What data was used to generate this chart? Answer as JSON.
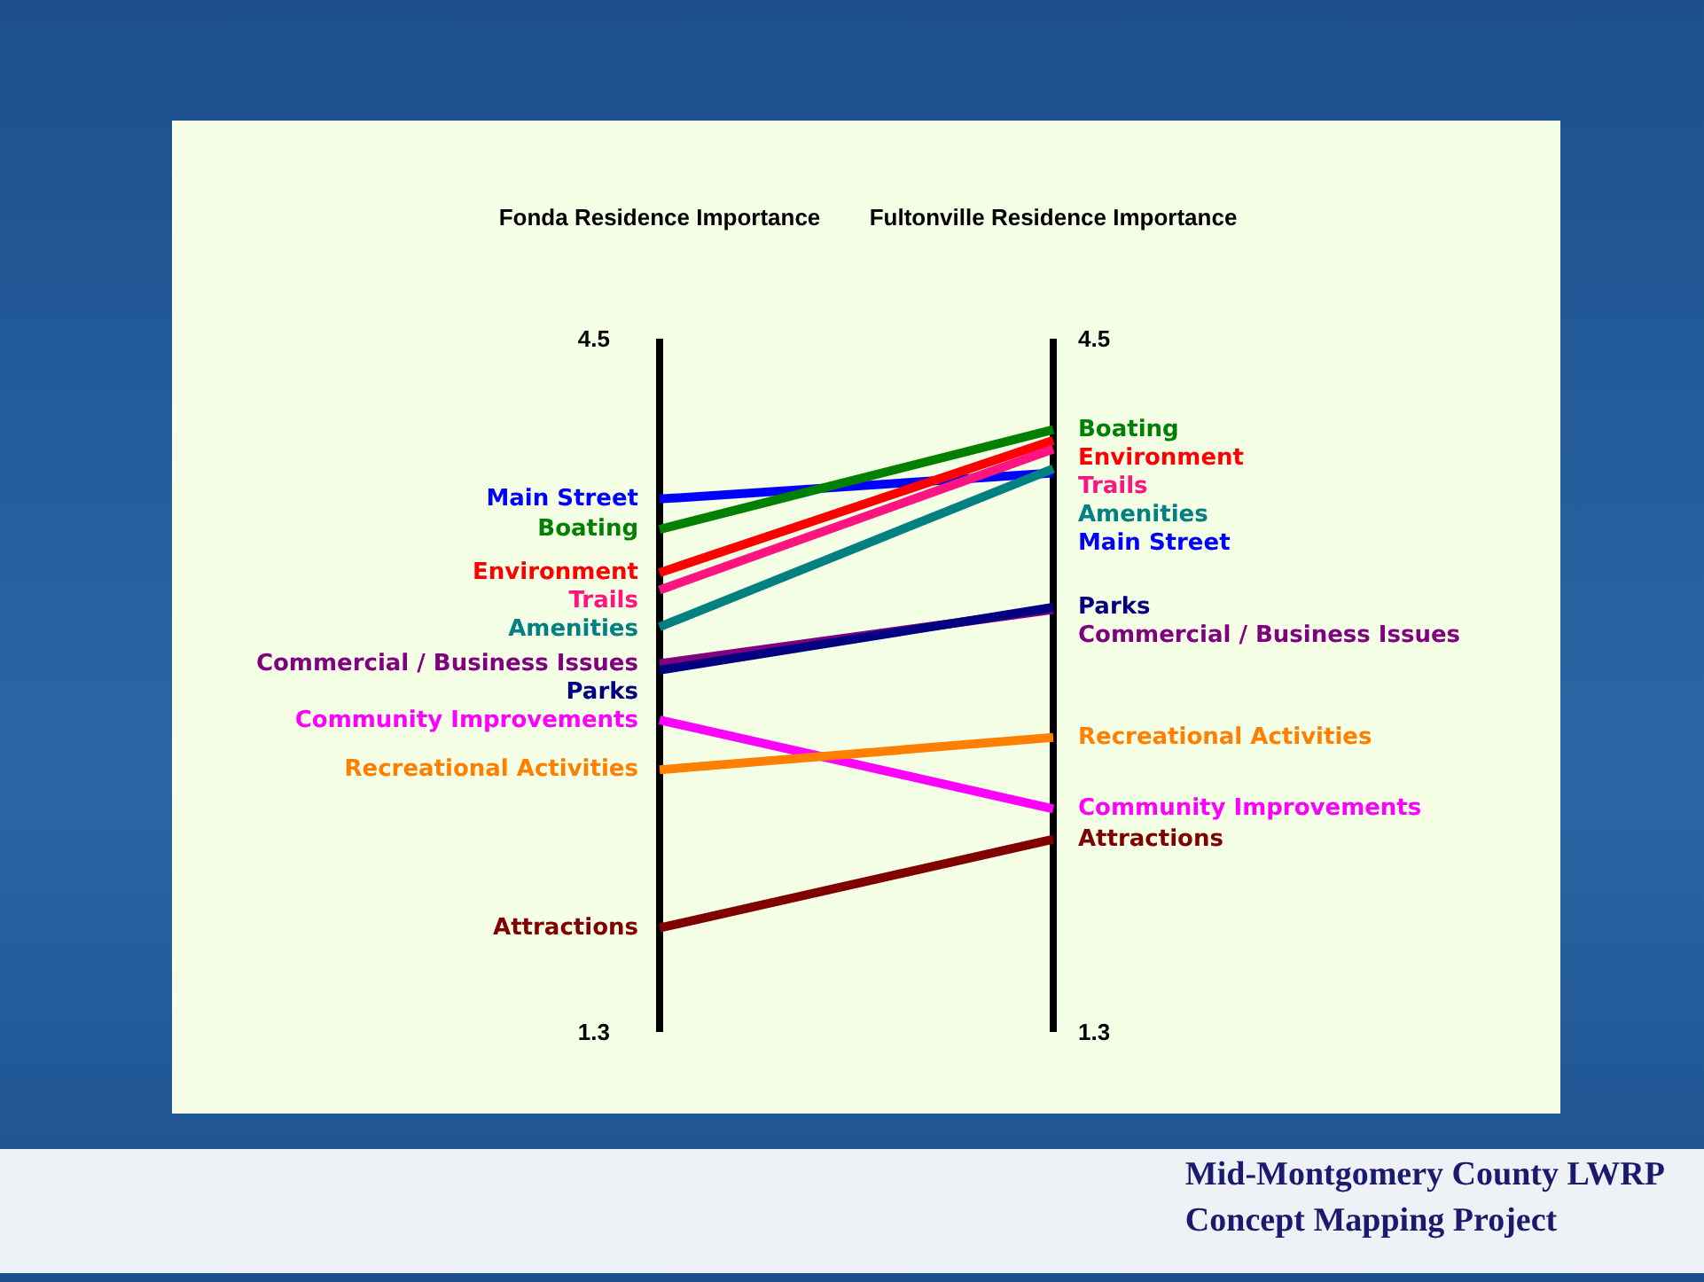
{
  "chart_data": {
    "type": "line",
    "categories": [
      "Fonda Residence Importance",
      "Fultonville Residence Importance"
    ],
    "series": [
      {
        "name": "Main Street",
        "color": "#0000ff",
        "values": [
          3.76,
          3.88
        ]
      },
      {
        "name": "Boating",
        "color": "#008000",
        "values": [
          3.62,
          4.08
        ]
      },
      {
        "name": "Environment",
        "color": "#ff0000",
        "values": [
          3.42,
          4.03
        ]
      },
      {
        "name": "Trails",
        "color": "#ff1480",
        "values": [
          3.34,
          3.99
        ]
      },
      {
        "name": "Amenities",
        "color": "#008080",
        "values": [
          3.17,
          3.9
        ]
      },
      {
        "name": "Commercial / Business Issues",
        "color": "#800080",
        "values": [
          3.0,
          3.25
        ]
      },
      {
        "name": "Parks",
        "color": "#000080",
        "values": [
          2.97,
          3.26
        ]
      },
      {
        "name": "Community Improvements",
        "color": "#ff00ff",
        "values": [
          2.74,
          2.33
        ]
      },
      {
        "name": "Recreational Activities",
        "color": "#ff8000",
        "values": [
          2.51,
          2.66
        ]
      },
      {
        "name": "Attractions",
        "color": "#800000",
        "values": [
          1.78,
          2.19
        ]
      }
    ],
    "ylim": [
      1.3,
      4.5
    ],
    "yticks": [
      4.5,
      1.3
    ],
    "y2lim": [
      1.3,
      4.5
    ],
    "y2ticks": [
      4.5,
      1.3
    ],
    "grid": "x",
    "legend": false,
    "marker": "none",
    "line_style": "solid",
    "annotations": [
      "Mid-Montgomery County LWRP",
      "Concept Mapping Project"
    ]
  }
}
